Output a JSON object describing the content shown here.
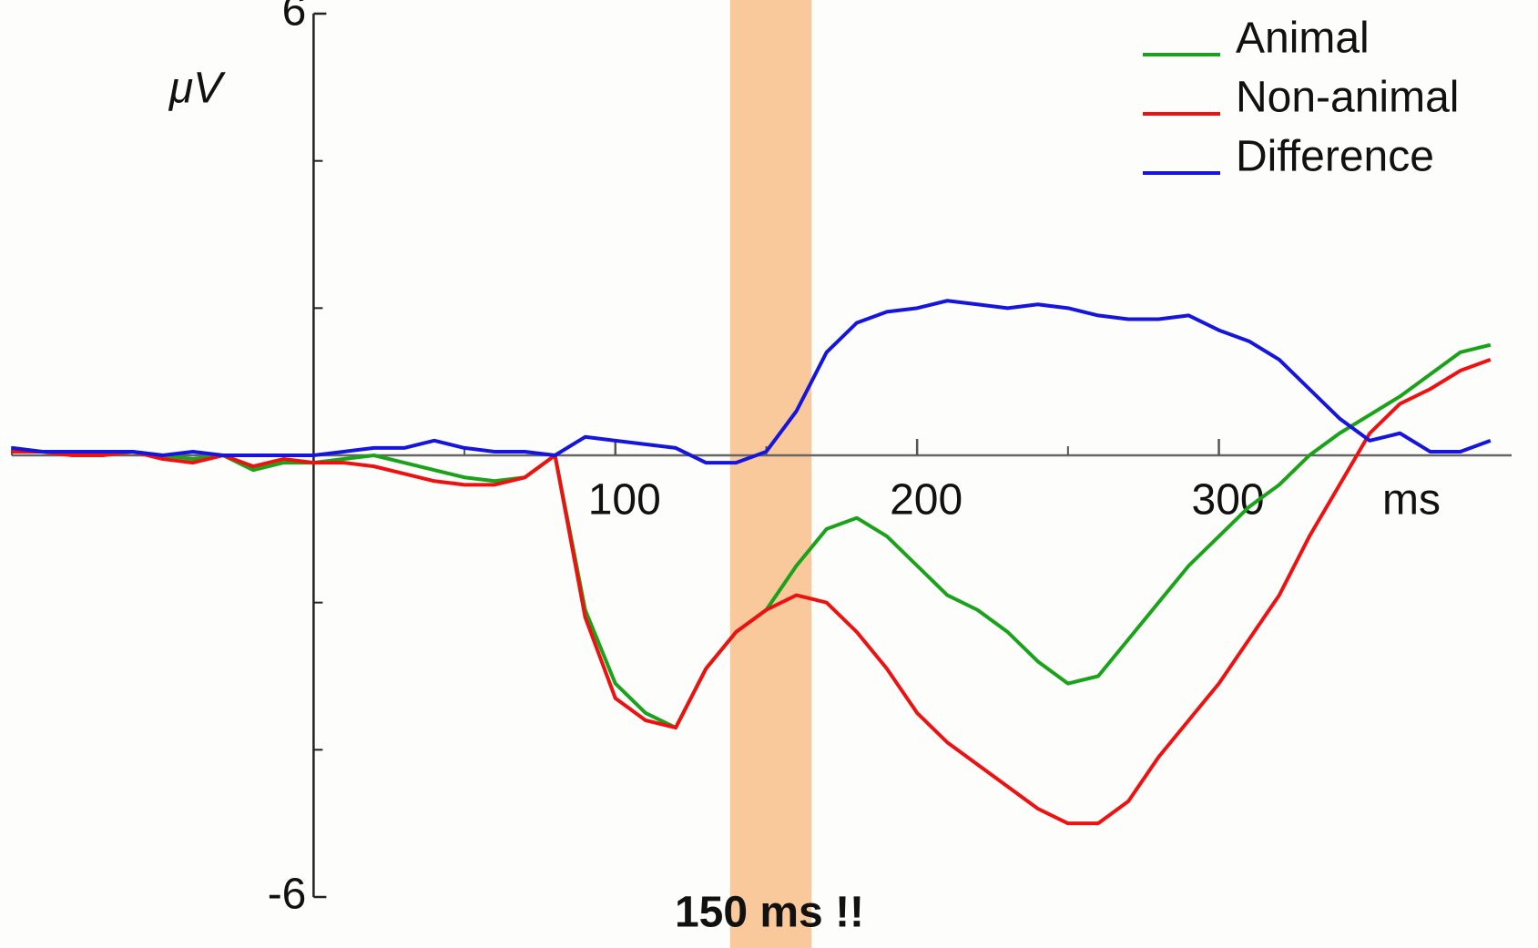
{
  "chart_data": {
    "type": "line",
    "y_label": "μV",
    "x_label": "ms",
    "annotation": "150 ms !!",
    "annotation_color": "#1f3fbf",
    "highlight": [
      138,
      165
    ],
    "highlight_color": "#f9c89b",
    "legend": "upper right",
    "xlim": [
      -100,
      397
    ],
    "ylim": [
      -6,
      6
    ],
    "xticks": [
      100,
      200,
      300
    ],
    "xminor": [
      -100,
      50,
      150,
      250
    ],
    "yticks": [
      6,
      -6
    ],
    "yminor": [
      4,
      2,
      0,
      -2,
      -4
    ],
    "x": [
      -100,
      -90,
      -80,
      -70,
      -60,
      -50,
      -40,
      -30,
      -20,
      -10,
      0,
      10,
      20,
      30,
      40,
      50,
      60,
      70,
      80,
      90,
      100,
      110,
      120,
      130,
      140,
      150,
      160,
      170,
      180,
      190,
      200,
      210,
      220,
      230,
      240,
      250,
      260,
      270,
      280,
      290,
      300,
      310,
      320,
      330,
      340,
      350,
      360,
      370,
      380,
      390
    ],
    "series": [
      {
        "name": "Animal",
        "color": "#1aa31a",
        "values": [
          0.1,
          0.05,
          0.05,
          0,
          0.05,
          0,
          -0.05,
          0,
          -0.2,
          -0.1,
          -0.1,
          -0.05,
          0,
          -0.1,
          -0.2,
          -0.3,
          -0.35,
          -0.3,
          0,
          -2.1,
          -3.1,
          -3.5,
          -3.7,
          -2.9,
          -2.4,
          -2.1,
          -1.5,
          -1.0,
          -0.85,
          -1.1,
          -1.5,
          -1.9,
          -2.1,
          -2.4,
          -2.8,
          -3.1,
          -3.0,
          -2.5,
          -2.0,
          -1.5,
          -1.1,
          -0.7,
          -0.4,
          0,
          0.3,
          0.55,
          0.8,
          1.1,
          1.4,
          1.5
        ]
      },
      {
        "name": "Non-animal",
        "color": "#ee1111",
        "values": [
          0.05,
          0.05,
          0,
          0,
          0.05,
          -0.05,
          -0.1,
          0,
          -0.15,
          -0.05,
          -0.1,
          -0.1,
          -0.15,
          -0.25,
          -0.35,
          -0.4,
          -0.4,
          -0.3,
          0,
          -2.2,
          -3.3,
          -3.6,
          -3.7,
          -2.9,
          -2.4,
          -2.1,
          -1.9,
          -2.0,
          -2.4,
          -2.9,
          -3.5,
          -3.9,
          -4.2,
          -4.5,
          -4.8,
          -5.0,
          -5.0,
          -4.7,
          -4.1,
          -3.6,
          -3.1,
          -2.5,
          -1.9,
          -1.1,
          -0.4,
          0.3,
          0.7,
          0.9,
          1.15,
          1.3
        ]
      },
      {
        "name": "Difference",
        "color": "#1515dd",
        "values": [
          0.1,
          0.05,
          0.05,
          0.05,
          0.05,
          0,
          0.05,
          0,
          0,
          0,
          0,
          0.05,
          0.1,
          0.1,
          0.2,
          0.1,
          0.05,
          0.05,
          0,
          0.25,
          0.2,
          0.15,
          0.1,
          -0.1,
          -0.1,
          0.05,
          0.6,
          1.4,
          1.8,
          1.95,
          2.0,
          2.1,
          2.05,
          2.0,
          2.05,
          2.0,
          1.9,
          1.85,
          1.85,
          1.9,
          1.7,
          1.55,
          1.3,
          0.9,
          0.5,
          0.2,
          0.3,
          0.05,
          0.05,
          0.2
        ]
      }
    ]
  }
}
